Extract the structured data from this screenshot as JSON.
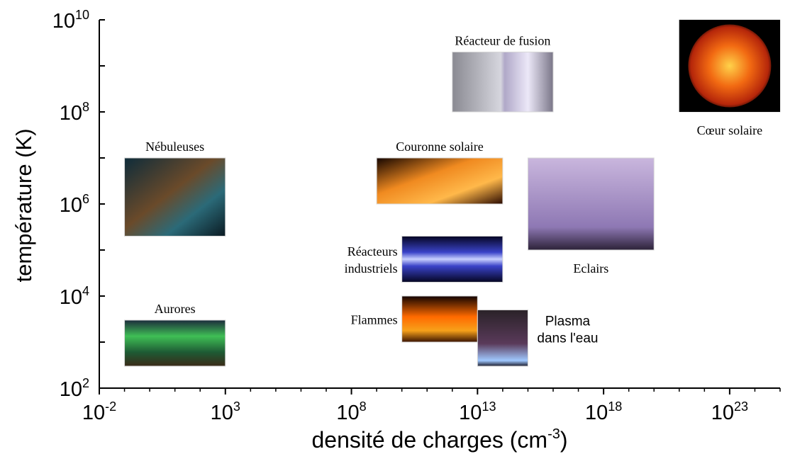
{
  "chart_data": {
    "type": "scatter",
    "xlabel": "densité de charges (cm",
    "xlabel_sup": "-3",
    "xlabel_tail": ")",
    "ylabel": "température (K)",
    "x_scale": "log",
    "y_scale": "log",
    "xlim": [
      0.01,
      1e+25
    ],
    "ylim": [
      100,
      10000000000.0
    ],
    "x_ticks": [
      {
        "value": 0.01,
        "base": "10",
        "exp": "-2"
      },
      {
        "value": 1000,
        "base": "10",
        "exp": "3"
      },
      {
        "value": 100000000.0,
        "base": "10",
        "exp": "8"
      },
      {
        "value": 10000000000000.0,
        "base": "10",
        "exp": "13"
      },
      {
        "value": 1e+18,
        "base": "10",
        "exp": "18"
      },
      {
        "value": 1e+23,
        "base": "10",
        "exp": "23"
      }
    ],
    "y_ticks": [
      {
        "value": 100,
        "base": "10",
        "exp": "2"
      },
      {
        "value": 10000,
        "base": "10",
        "exp": "4"
      },
      {
        "value": 1000000,
        "base": "10",
        "exp": "6"
      },
      {
        "value": 100000000,
        "base": "10",
        "exp": "8"
      },
      {
        "value": 10000000000,
        "base": "10",
        "exp": "10"
      }
    ],
    "grid": false,
    "points": [
      {
        "label": [
          "Nébuleuses"
        ],
        "x_range": [
          0.1,
          1000
        ],
        "y_range": [
          200000,
          10000000
        ],
        "fill": "nebula"
      },
      {
        "label": [
          "Aurores"
        ],
        "x_range": [
          0.1,
          1000
        ],
        "y_range": [
          300,
          3000
        ],
        "fill": "aurora"
      },
      {
        "label": [
          "Réacteur de fusion"
        ],
        "x_range": [
          1000000000000.0,
          1e+16
        ],
        "y_range": [
          100000000.0,
          2000000000.0
        ],
        "fill": "fusion"
      },
      {
        "label": [
          "Couronne solaire"
        ],
        "x_range": [
          1000000000.0,
          100000000000000.0
        ],
        "y_range": [
          1000000.0,
          10000000
        ],
        "fill": "corona"
      },
      {
        "label": [
          "Réacteurs",
          "industriels"
        ],
        "x_range": [
          10000000000.0,
          100000000000000.0
        ],
        "y_range": [
          20000,
          200000
        ],
        "fill": "plasma-blue"
      },
      {
        "label": [
          "Flammes"
        ],
        "x_range": [
          10000000000.0,
          10000000000000.0
        ],
        "y_range": [
          1000,
          10000
        ],
        "fill": "flame"
      },
      {
        "label": [
          "Plasma",
          "dans l'eau"
        ],
        "x_range": [
          10000000000000.0,
          1000000000000000.0
        ],
        "y_range": [
          300,
          5000
        ],
        "fill": "water-plasma"
      },
      {
        "label": [
          "Eclairs"
        ],
        "x_range": [
          1000000000000000.0,
          1e+20
        ],
        "y_range": [
          100000.0,
          10000000.0
        ],
        "fill": "lightning"
      },
      {
        "label": [
          "Cœur solaire"
        ],
        "x_range": [
          1e+21,
          1e+25
        ],
        "y_range": [
          100000000.0,
          10000000000.0
        ],
        "fill": "sun"
      }
    ]
  },
  "colors": {
    "axis": "#000000",
    "sun": "#e04a0a",
    "flame": "#f7a11a",
    "corona": "#f08a20",
    "lightning": "#a58fc4",
    "plasma_blue": "#3a43c8",
    "aurora": "#2e8b3a",
    "nebula": "#1c4a5a",
    "fusion": "#c9c9d6"
  }
}
